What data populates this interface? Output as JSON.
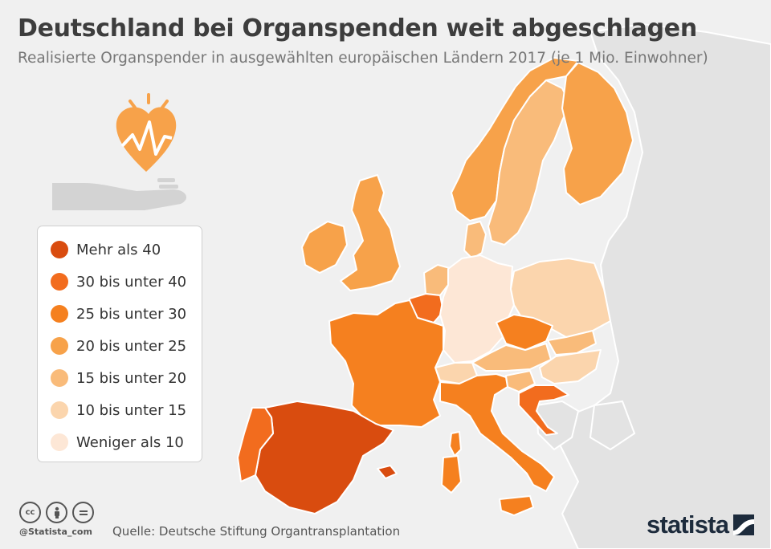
{
  "title": "Deutschland bei Organspenden weit abgeschlagen",
  "subtitle": "Realisierte Organspender in ausgewählten europäischen Ländern 2017 (je 1 Mio. Einwohner)",
  "legend": [
    {
      "label": "Mehr als 40",
      "color": "#d94c0f"
    },
    {
      "label": "30 bis unter 40",
      "color": "#f26c1e"
    },
    {
      "label": "25 bis unter 30",
      "color": "#f5801f"
    },
    {
      "label": "20 bis unter 25",
      "color": "#f7a24a"
    },
    {
      "label": "15 bis unter 20",
      "color": "#f9bb7a"
    },
    {
      "label": "10 bis unter 15",
      "color": "#fbd5ad"
    },
    {
      "label": "Weniger als 10",
      "color": "#fde7d6"
    }
  ],
  "colors": {
    "background": "#f0f0f0",
    "land_other": "#e3e3e3",
    "border": "#ffffff",
    "heart": "#f7a24a",
    "hand": "#d3d3d3",
    "brand": "#1d2b3c"
  },
  "footer": {
    "handle": "@Statista_com",
    "source": "Quelle: Deutsche Stiftung Organtransplantation",
    "brand": "statista"
  },
  "icons": [
    "heart-icon",
    "hand-icon",
    "cc-icon",
    "by-icon",
    "nd-icon",
    "statista-logo-icon"
  ]
}
